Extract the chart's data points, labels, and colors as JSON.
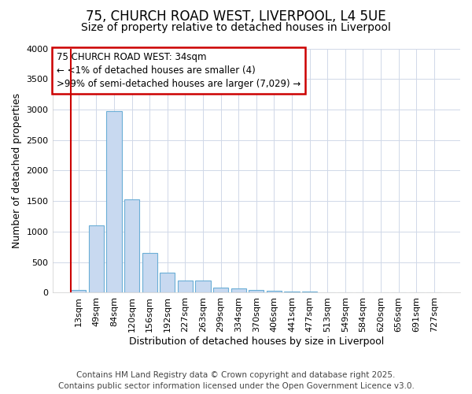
{
  "title": "75, CHURCH ROAD WEST, LIVERPOOL, L4 5UE",
  "subtitle": "Size of property relative to detached houses in Liverpool",
  "xlabel": "Distribution of detached houses by size in Liverpool",
  "ylabel": "Number of detached properties",
  "footnote1": "Contains HM Land Registry data © Crown copyright and database right 2025.",
  "footnote2": "Contains public sector information licensed under the Open Government Licence v3.0.",
  "categories": [
    "13sqm",
    "49sqm",
    "84sqm",
    "120sqm",
    "156sqm",
    "192sqm",
    "227sqm",
    "263sqm",
    "299sqm",
    "334sqm",
    "370sqm",
    "406sqm",
    "441sqm",
    "477sqm",
    "513sqm",
    "549sqm",
    "584sqm",
    "620sqm",
    "656sqm",
    "691sqm",
    "727sqm"
  ],
  "values": [
    40,
    1100,
    2970,
    1530,
    650,
    330,
    200,
    200,
    85,
    75,
    50,
    30,
    25,
    25,
    0,
    0,
    0,
    0,
    0,
    0,
    0
  ],
  "bar_color": "#c8d9f0",
  "bar_edge_color": "#6baed6",
  "annotation_text1": "75 CHURCH ROAD WEST: 34sqm",
  "annotation_text2": "← <1% of detached houses are smaller (4)",
  "annotation_text3": ">99% of semi-detached houses are larger (7,029) →",
  "annotation_box_color": "#ffffff",
  "annotation_border_color": "#cc0000",
  "red_line_color": "#cc0000",
  "ylim": [
    0,
    4000
  ],
  "yticks": [
    0,
    500,
    1000,
    1500,
    2000,
    2500,
    3000,
    3500,
    4000
  ],
  "bg_color": "#ffffff",
  "plot_bg_color": "#ffffff",
  "grid_color": "#d0d8e8",
  "title_fontsize": 12,
  "subtitle_fontsize": 10,
  "axis_label_fontsize": 9,
  "tick_fontsize": 8,
  "annotation_fontsize": 8.5,
  "footnote_fontsize": 7.5
}
